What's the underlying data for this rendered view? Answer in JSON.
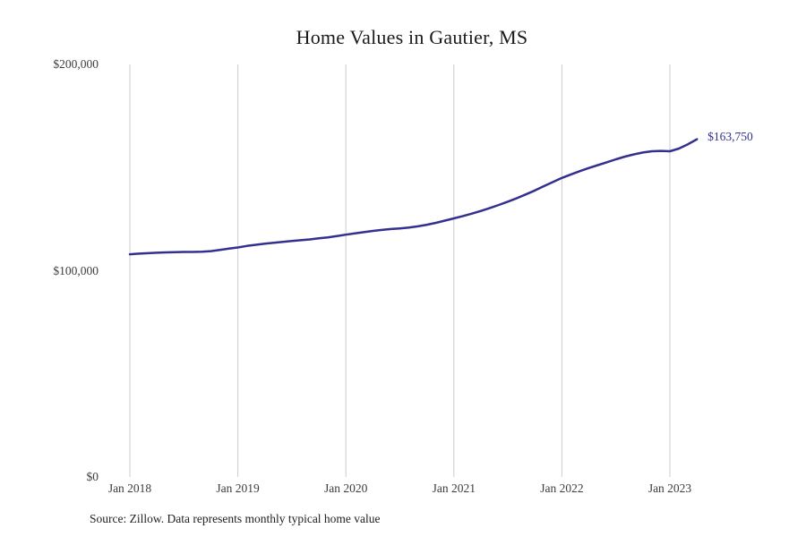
{
  "chart_data": {
    "type": "line",
    "title": "Home Values in Gautier, MS",
    "xlabel": "",
    "ylabel": "",
    "ylim": [
      0,
      200000
    ],
    "y_ticks": [
      {
        "value": 0,
        "label": "$0"
      },
      {
        "value": 100000,
        "label": "$100,000"
      },
      {
        "value": 200000,
        "label": "$200,000"
      }
    ],
    "x_tick_indices": [
      0,
      12,
      24,
      36,
      48,
      60
    ],
    "x_tick_labels": [
      "Jan 2018",
      "Jan 2019",
      "Jan 2020",
      "Jan 2021",
      "Jan 2022",
      "Jan 2023"
    ],
    "x_range": {
      "start": "2018-01",
      "end": "2023-04",
      "frequency": "monthly"
    },
    "months": [
      "2018-01",
      "2018-02",
      "2018-03",
      "2018-04",
      "2018-05",
      "2018-06",
      "2018-07",
      "2018-08",
      "2018-09",
      "2018-10",
      "2018-11",
      "2018-12",
      "2019-01",
      "2019-02",
      "2019-03",
      "2019-04",
      "2019-05",
      "2019-06",
      "2019-07",
      "2019-08",
      "2019-09",
      "2019-10",
      "2019-11",
      "2019-12",
      "2020-01",
      "2020-02",
      "2020-03",
      "2020-04",
      "2020-05",
      "2020-06",
      "2020-07",
      "2020-08",
      "2020-09",
      "2020-10",
      "2020-11",
      "2020-12",
      "2021-01",
      "2021-02",
      "2021-03",
      "2021-04",
      "2021-05",
      "2021-06",
      "2021-07",
      "2021-08",
      "2021-09",
      "2021-10",
      "2021-11",
      "2021-12",
      "2022-01",
      "2022-02",
      "2022-03",
      "2022-04",
      "2022-05",
      "2022-06",
      "2022-07",
      "2022-08",
      "2022-09",
      "2022-10",
      "2022-11",
      "2022-12",
      "2023-01",
      "2023-02",
      "2023-03",
      "2023-04"
    ],
    "values": [
      108000,
      108300,
      108500,
      108700,
      108900,
      109000,
      109100,
      109100,
      109200,
      109500,
      110100,
      110700,
      111300,
      112000,
      112600,
      113100,
      113600,
      114000,
      114400,
      114800,
      115200,
      115700,
      116200,
      116800,
      117500,
      118100,
      118700,
      119300,
      119800,
      120200,
      120500,
      120900,
      121500,
      122300,
      123200,
      124300,
      125400,
      126500,
      127700,
      129000,
      130400,
      131900,
      133500,
      135200,
      137000,
      138900,
      141000,
      143000,
      145000,
      146700,
      148300,
      149800,
      151200,
      152600,
      154000,
      155300,
      156400,
      157300,
      157900,
      158100,
      157900,
      159200,
      161300,
      163750
    ],
    "end_label": "$163,750",
    "legend": "none",
    "grid": "vertical-only",
    "colors": {
      "line": "#333090",
      "grid": "#cccccc",
      "annotation": "#333090"
    }
  },
  "footer": {
    "source_text": "Source: Zillow. Data represents monthly typical home value"
  }
}
